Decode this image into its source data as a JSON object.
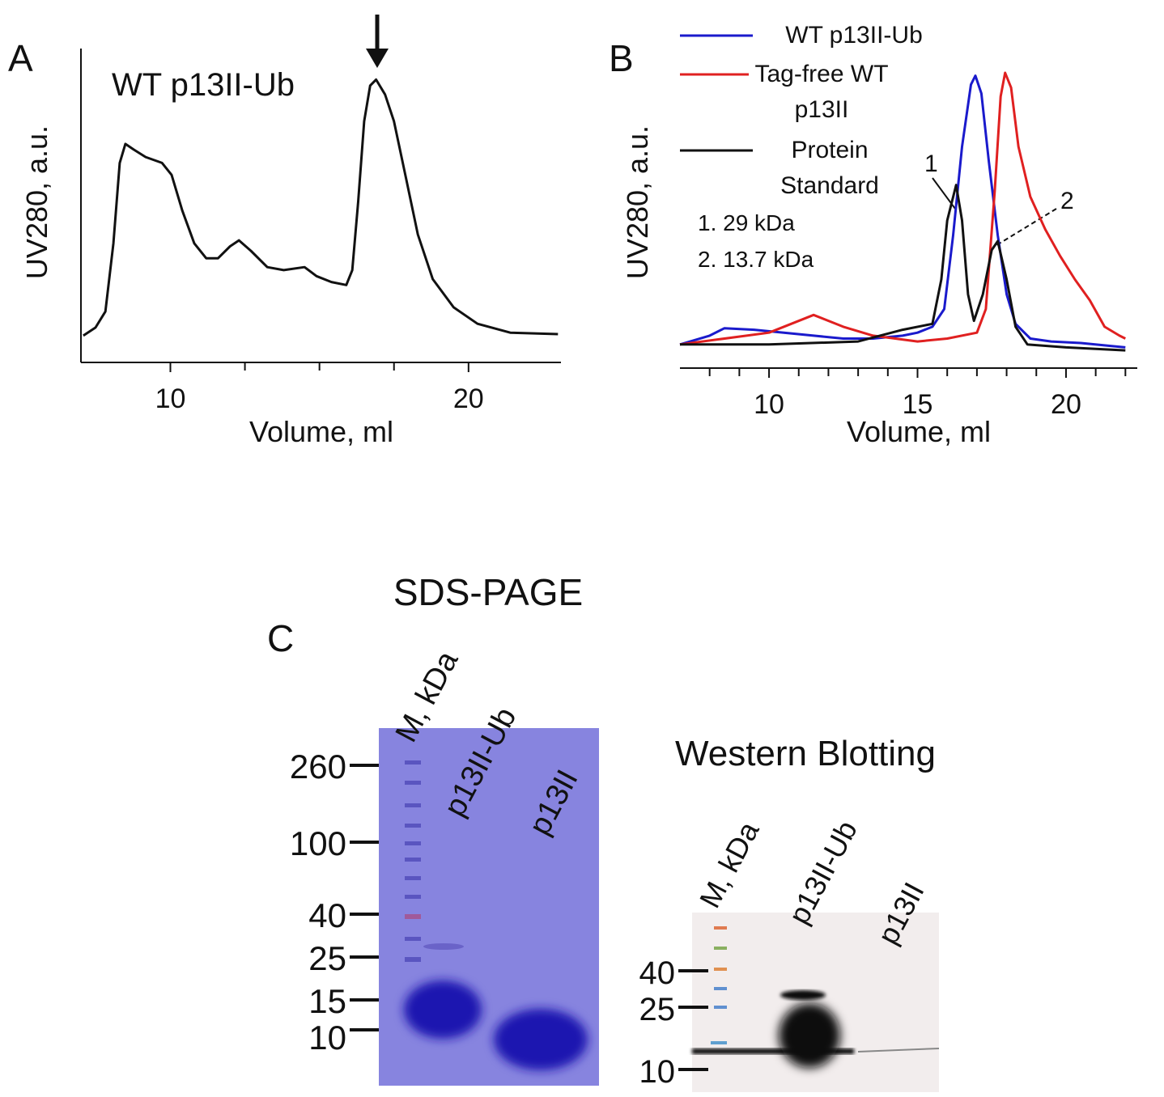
{
  "chart_data": [
    {
      "type": "line",
      "panel_label": "A",
      "title": "WT p13II-Ub",
      "y_label": "UV280, a.u.",
      "x_label": "Volume, ml",
      "xlim": [
        7,
        23.1
      ],
      "xticks": [
        10,
        20
      ],
      "minor_xticks": [
        12.5,
        15,
        17.5
      ],
      "ylim": [
        0,
        1
      ],
      "color": "#111111",
      "x": [
        7.08,
        7.49,
        7.82,
        8.09,
        8.3,
        8.49,
        8.77,
        9.17,
        9.72,
        10.04,
        10.4,
        10.8,
        11.2,
        11.6,
        12.0,
        12.3,
        12.7,
        13.25,
        13.8,
        14.5,
        14.9,
        15.4,
        15.9,
        16.1,
        16.3,
        16.5,
        16.7,
        16.9,
        17.2,
        17.5,
        17.9,
        18.3,
        18.8,
        19.5,
        20.3,
        21.4,
        23.0
      ],
      "values": [
        0.09,
        0.117,
        0.171,
        0.4,
        0.67,
        0.734,
        0.715,
        0.69,
        0.67,
        0.63,
        0.51,
        0.4,
        0.35,
        0.35,
        0.39,
        0.41,
        0.375,
        0.32,
        0.31,
        0.32,
        0.29,
        0.27,
        0.26,
        0.31,
        0.54,
        0.81,
        0.93,
        0.95,
        0.9,
        0.81,
        0.62,
        0.43,
        0.28,
        0.185,
        0.13,
        0.1,
        0.095
      ]
    },
    {
      "type": "line",
      "panel_label": "B",
      "y_label": "UV280, a.u.",
      "x_label": "Volume, ml",
      "xlim": [
        7,
        22.4
      ],
      "xticks": [
        10,
        15,
        20
      ],
      "minor_xticks": [
        8,
        9,
        11,
        12,
        13,
        14,
        16,
        17,
        18,
        19,
        21,
        22
      ],
      "ylim": [
        0,
        1
      ],
      "legend": "upper-left",
      "annotations": [
        "1",
        "2",
        "1. 29 kDa",
        "2. 13.7 kDa"
      ],
      "series": [
        {
          "name": "WT p13II-Ub",
          "color": "#1a1acc",
          "x": [
            7.0,
            8.0,
            8.5,
            9.5,
            10.5,
            11.5,
            12.5,
            13.5,
            14.5,
            15.0,
            15.5,
            15.9,
            16.2,
            16.5,
            16.8,
            16.95,
            17.15,
            17.4,
            17.7,
            18.0,
            18.3,
            18.8,
            19.5,
            20.5,
            21.5,
            22.0
          ],
          "values": [
            0.08,
            0.11,
            0.135,
            0.13,
            0.12,
            0.11,
            0.1,
            0.1,
            0.11,
            0.12,
            0.14,
            0.2,
            0.45,
            0.75,
            0.96,
            0.99,
            0.93,
            0.7,
            0.45,
            0.25,
            0.15,
            0.1,
            0.09,
            0.085,
            0.075,
            0.07
          ]
        },
        {
          "name": "Tag-free WT p13II",
          "color": "#e02020",
          "x": [
            7.0,
            10.0,
            11.5,
            12.5,
            13.5,
            15.0,
            16.0,
            17.0,
            17.3,
            17.6,
            17.8,
            17.95,
            18.15,
            18.4,
            18.8,
            19.3,
            19.8,
            20.3,
            20.8,
            21.3,
            21.8,
            22.0
          ],
          "values": [
            0.08,
            0.12,
            0.18,
            0.14,
            0.11,
            0.09,
            0.1,
            0.12,
            0.2,
            0.6,
            0.92,
            1.0,
            0.95,
            0.75,
            0.58,
            0.47,
            0.38,
            0.3,
            0.23,
            0.14,
            0.11,
            0.1
          ]
        },
        {
          "name": "Protein Standard",
          "color": "#111111",
          "x": [
            7.0,
            10.0,
            13.0,
            14.5,
            15.5,
            15.8,
            16.0,
            16.3,
            16.5,
            16.7,
            16.9,
            17.2,
            17.5,
            17.7,
            18.0,
            18.3,
            18.7,
            20.0,
            22.0
          ],
          "values": [
            0.08,
            0.08,
            0.09,
            0.13,
            0.15,
            0.3,
            0.5,
            0.62,
            0.5,
            0.25,
            0.16,
            0.25,
            0.4,
            0.43,
            0.3,
            0.14,
            0.08,
            0.07,
            0.06
          ]
        }
      ]
    }
  ],
  "panel_c": {
    "label": "C",
    "sds_page": {
      "title": "SDS-PAGE",
      "lanes": [
        "M, kDa",
        "p13II-Ub",
        "p13II"
      ],
      "markers": [
        "260",
        "100",
        "40",
        "25",
        "15",
        "10"
      ]
    },
    "western": {
      "title": "Western Blotting",
      "lanes": [
        "M, kDa",
        "p13II-Ub",
        "p13II"
      ],
      "markers": [
        "40",
        "25",
        "10"
      ]
    }
  }
}
